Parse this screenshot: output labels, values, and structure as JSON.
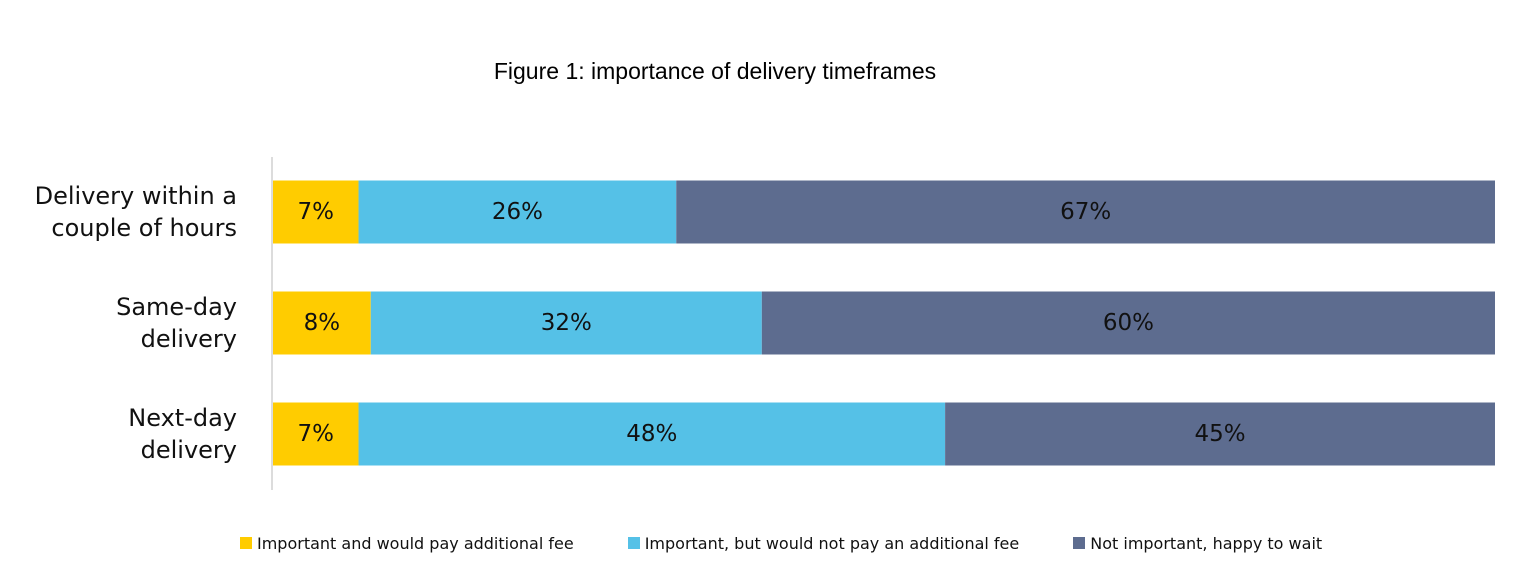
{
  "chart_data": {
    "type": "bar",
    "orientation": "horizontal",
    "stacked": true,
    "title": "Figure 1: importance of delivery timeframes",
    "categories": [
      "Delivery within a couple of hours",
      "Same-day delivery",
      "Next-day delivery"
    ],
    "category_lines": [
      [
        "Delivery within a",
        "couple of hours"
      ],
      [
        "Same-day",
        "delivery"
      ],
      [
        "Next-day",
        "delivery"
      ]
    ],
    "series": [
      {
        "name": "Important and would pay additional fee",
        "values": [
          7,
          8,
          7
        ],
        "labels": [
          "7%",
          "8%",
          "7%"
        ],
        "color": "#FFCC00",
        "label_color": "#111111"
      },
      {
        "name": "Important, but would not pay an additional fee",
        "values": [
          26,
          32,
          48
        ],
        "labels": [
          "26%",
          "32%",
          "48%"
        ],
        "color": "#55C1E7",
        "label_color": "#111111"
      },
      {
        "name": "Not important, happy to wait",
        "values": [
          67,
          60,
          45
        ],
        "labels": [
          "67%",
          "60%",
          "45%"
        ],
        "color": "#5D6C8F",
        "label_color": "#111111"
      }
    ],
    "xlim": [
      0,
      100
    ],
    "unit": "%",
    "grid": false,
    "legend_position": "bottom"
  }
}
